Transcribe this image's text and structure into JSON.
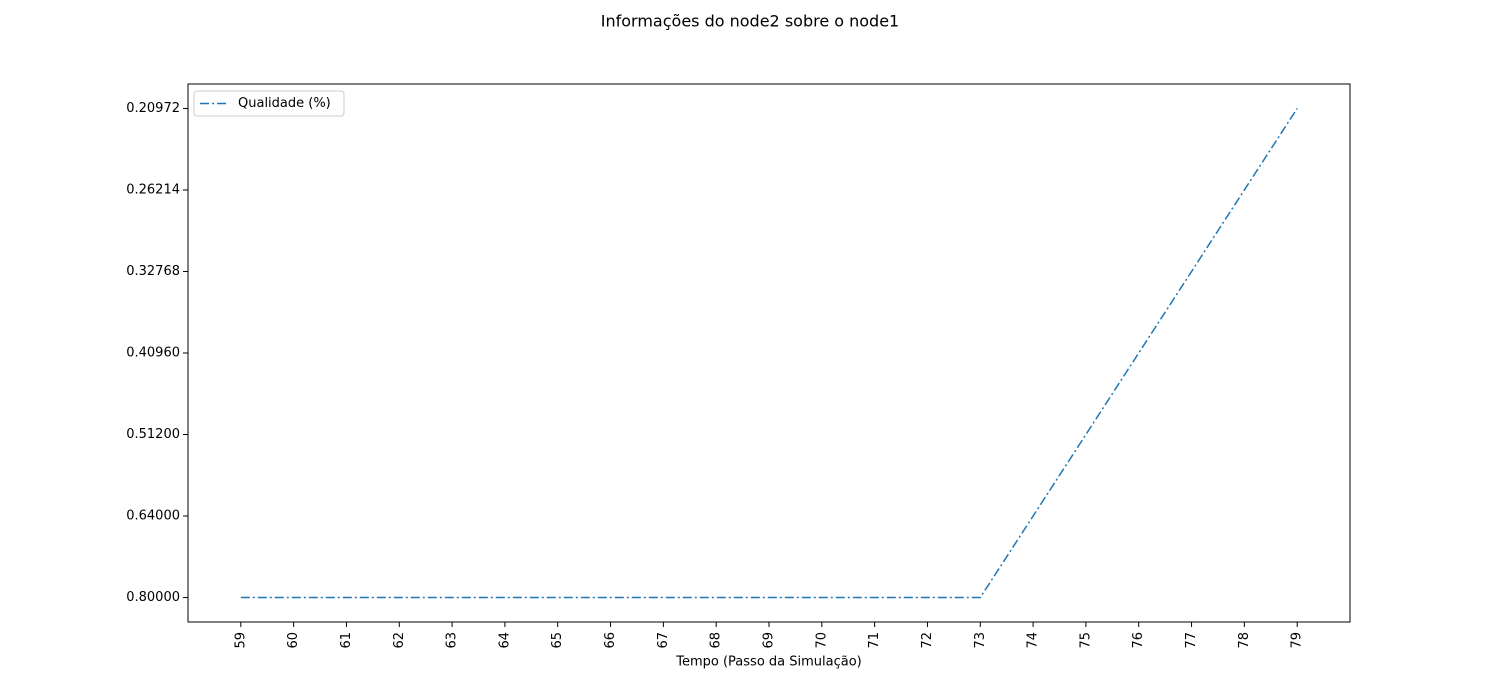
{
  "chart_data": {
    "type": "line",
    "title": "Informações do node2 sobre o node1",
    "xlabel": "Tempo (Passo da Simulação)",
    "x": [
      59,
      60,
      61,
      62,
      63,
      64,
      65,
      66,
      67,
      68,
      69,
      70,
      71,
      72,
      73,
      74,
      75,
      76,
      77,
      78,
      79
    ],
    "series": [
      {
        "name": "Qualidade (%)",
        "color": "#1f77b4",
        "values": [
          0.8,
          0.8,
          0.8,
          0.8,
          0.8,
          0.8,
          0.8,
          0.8,
          0.8,
          0.8,
          0.8,
          0.8,
          0.8,
          0.8,
          0.8,
          0.64,
          0.512,
          0.4096,
          0.32768,
          0.262144,
          0.2097152
        ]
      }
    ],
    "xlim": [
      58,
      80
    ],
    "xticks": [
      59,
      60,
      61,
      62,
      63,
      64,
      65,
      66,
      67,
      68,
      69,
      70,
      71,
      72,
      73,
      74,
      75,
      76,
      77,
      78,
      79
    ],
    "y_scale": "categorical",
    "yticks": [
      {
        "value": 0.8,
        "label": "0.80000"
      },
      {
        "value": 0.64,
        "label": "0.64000"
      },
      {
        "value": 0.512,
        "label": "0.51200"
      },
      {
        "value": 0.4096,
        "label": "0.40960"
      },
      {
        "value": 0.32768,
        "label": "0.32768"
      },
      {
        "value": 0.262144,
        "label": "0.26214"
      },
      {
        "value": 0.2097152,
        "label": "0.20972"
      }
    ],
    "legend": "upper left",
    "grid": false
  }
}
